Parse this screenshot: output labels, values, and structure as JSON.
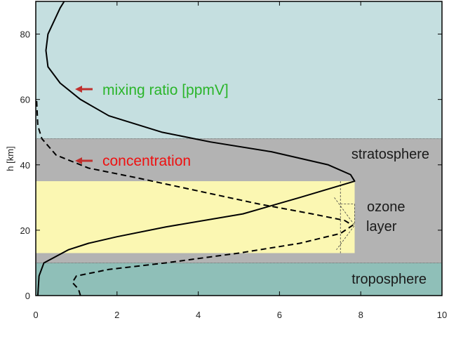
{
  "chart_data": {
    "type": "line",
    "title": "",
    "xlabel": "",
    "ylabel": "h [km]",
    "xlim": [
      0,
      10
    ],
    "ylim": [
      0,
      90
    ],
    "x_ticks": [
      0,
      2,
      4,
      6,
      8,
      10
    ],
    "y_ticks": [
      0,
      20,
      40,
      60,
      80
    ],
    "regions": [
      {
        "name": "troposphere",
        "label": "troposphere",
        "y_from": 0,
        "y_to": 10,
        "color": "#8fbfb8"
      },
      {
        "name": "stratosphere",
        "label": "stratosphere",
        "y_from": 10,
        "y_to": 48,
        "color": "#b3b3b3"
      },
      {
        "name": "upper-atmosphere",
        "label": "",
        "y_from": 48,
        "y_to": 90,
        "color": "#c5dfe0"
      },
      {
        "name": "ozone-layer",
        "label": "ozone\nlayer",
        "y_from": 13,
        "y_to": 35,
        "x_to": 7.85,
        "color": "#fbf7b2"
      }
    ],
    "series": [
      {
        "name": "mixing ratio [ppmV]",
        "style": "solid",
        "points": [
          [
            0.05,
            0
          ],
          [
            0.08,
            6
          ],
          [
            0.2,
            10
          ],
          [
            0.8,
            14
          ],
          [
            1.3,
            16
          ],
          [
            2.0,
            18
          ],
          [
            3.2,
            21
          ],
          [
            5.1,
            25
          ],
          [
            6.5,
            30
          ],
          [
            7.85,
            35
          ],
          [
            7.75,
            37
          ],
          [
            7.2,
            40
          ],
          [
            5.8,
            44
          ],
          [
            4.3,
            47
          ],
          [
            3.1,
            50
          ],
          [
            1.8,
            55
          ],
          [
            1.1,
            60
          ],
          [
            0.6,
            65
          ],
          [
            0.3,
            70
          ],
          [
            0.25,
            75
          ],
          [
            0.3,
            80
          ],
          [
            0.6,
            88
          ],
          [
            0.7,
            90
          ]
        ]
      },
      {
        "name": "concentration",
        "style": "dashed",
        "points": [
          [
            1.1,
            0
          ],
          [
            1.05,
            2
          ],
          [
            0.9,
            4
          ],
          [
            1.0,
            6
          ],
          [
            1.8,
            8
          ],
          [
            3.2,
            10
          ],
          [
            5.0,
            13
          ],
          [
            6.5,
            16
          ],
          [
            7.5,
            19
          ],
          [
            7.8,
            21.5
          ],
          [
            7.6,
            23
          ],
          [
            6.8,
            25
          ],
          [
            5.5,
            28
          ],
          [
            4.0,
            32
          ],
          [
            2.5,
            36
          ],
          [
            1.3,
            39
          ],
          [
            0.5,
            43
          ],
          [
            0.15,
            48
          ],
          [
            0.05,
            52
          ],
          [
            0.02,
            60
          ]
        ]
      }
    ],
    "annotations": [
      {
        "text": "mixing ratio [ppmV]",
        "color": "#2ab52a",
        "arrow_color": "#c0302e"
      },
      {
        "text": "concentration",
        "color": "#ee1111",
        "arrow_color": "#c0302e"
      }
    ],
    "colors": {
      "axis": "#000000",
      "dashed_marker": "#444444"
    }
  }
}
